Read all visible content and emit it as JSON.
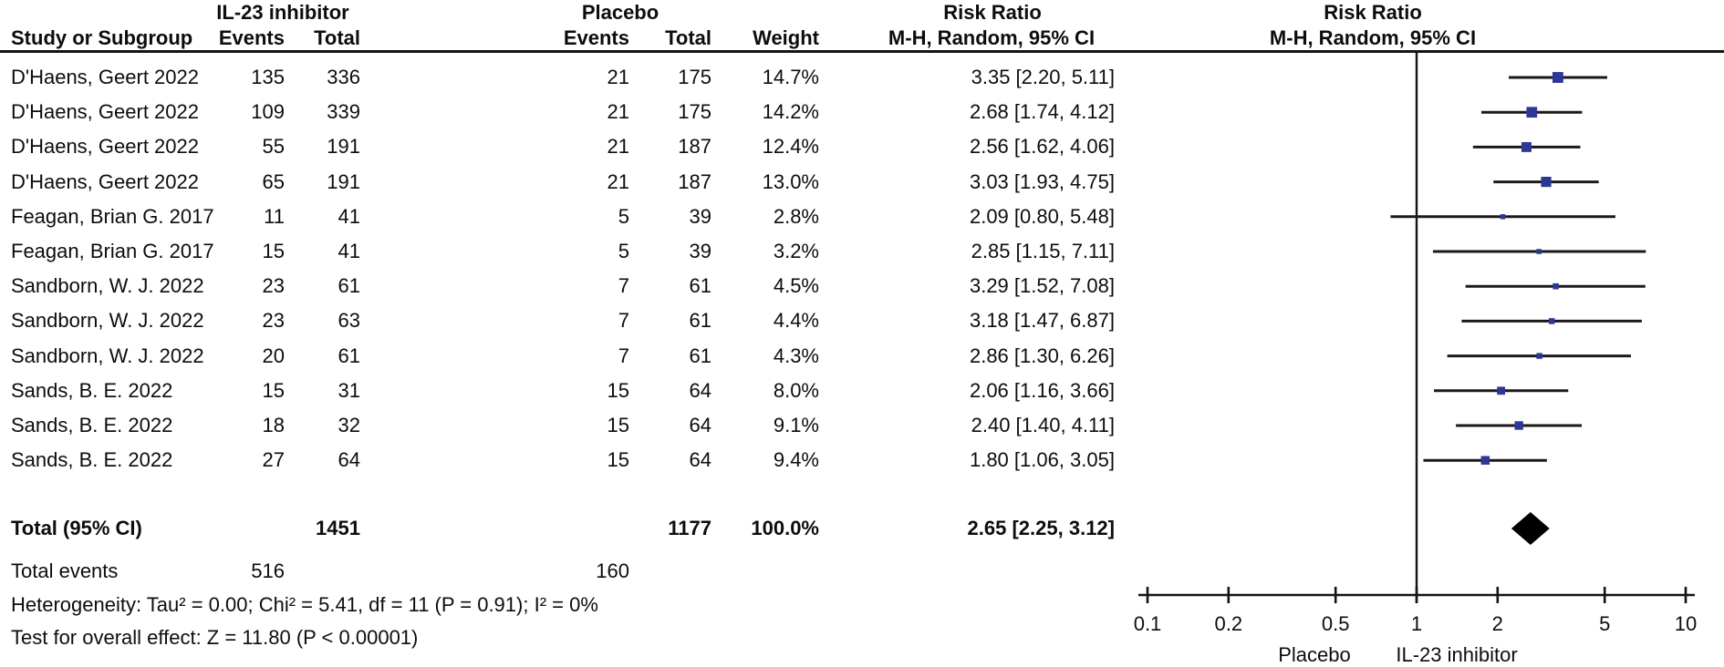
{
  "table": {
    "group_headers": {
      "treatment": "IL-23 inhibitor",
      "control": "Placebo",
      "risk_ratio": "Risk Ratio"
    },
    "column_headers": {
      "study": "Study or Subgroup",
      "treatment_events": "Events",
      "treatment_total": "Total",
      "control_events": "Events",
      "control_total": "Total",
      "weight": "Weight",
      "ci": "M-H, Random, 95% CI"
    },
    "total_events_label": "Total events"
  },
  "plot": {
    "title": "Risk Ratio",
    "subtitle": "M-H, Random, 95% CI",
    "colors": {
      "square": "#2d3796",
      "ci_line": "#1a1a1a",
      "diamond": "#000000",
      "axis": "#141414"
    }
  },
  "chart_data": {
    "type": "forest",
    "effect_measure": "Risk Ratio",
    "method": "M-H, Random, 95% CI",
    "x_scale": "log10",
    "xlim": [
      0.1,
      10
    ],
    "x_ticks": [
      0.1,
      0.2,
      0.5,
      1,
      2,
      5,
      10
    ],
    "favours_left": "Placebo",
    "favours_right": "IL-23 inhibitor",
    "studies": [
      {
        "name": "D'Haens, Geert 2022",
        "treatment_events": 135,
        "treatment_total": 336,
        "control_events": 21,
        "control_total": 175,
        "weight": "14.7%",
        "weight_value": 14.7,
        "rr": 3.35,
        "ci_low": 2.2,
        "ci_high": 5.11,
        "label": "3.35 [2.20, 5.11]"
      },
      {
        "name": "D'Haens, Geert 2022",
        "treatment_events": 109,
        "treatment_total": 339,
        "control_events": 21,
        "control_total": 175,
        "weight": "14.2%",
        "weight_value": 14.2,
        "rr": 2.68,
        "ci_low": 1.74,
        "ci_high": 4.12,
        "label": "2.68 [1.74, 4.12]"
      },
      {
        "name": "D'Haens, Geert 2022",
        "treatment_events": 55,
        "treatment_total": 191,
        "control_events": 21,
        "control_total": 187,
        "weight": "12.4%",
        "weight_value": 12.4,
        "rr": 2.56,
        "ci_low": 1.62,
        "ci_high": 4.06,
        "label": "2.56 [1.62, 4.06]"
      },
      {
        "name": "D'Haens, Geert 2022",
        "treatment_events": 65,
        "treatment_total": 191,
        "control_events": 21,
        "control_total": 187,
        "weight": "13.0%",
        "weight_value": 13.0,
        "rr": 3.03,
        "ci_low": 1.93,
        "ci_high": 4.75,
        "label": "3.03 [1.93, 4.75]"
      },
      {
        "name": "Feagan, Brian G. 2017",
        "treatment_events": 11,
        "treatment_total": 41,
        "control_events": 5,
        "control_total": 39,
        "weight": "2.8%",
        "weight_value": 2.8,
        "rr": 2.09,
        "ci_low": 0.8,
        "ci_high": 5.48,
        "label": "2.09 [0.80, 5.48]"
      },
      {
        "name": "Feagan, Brian G. 2017",
        "treatment_events": 15,
        "treatment_total": 41,
        "control_events": 5,
        "control_total": 39,
        "weight": "3.2%",
        "weight_value": 3.2,
        "rr": 2.85,
        "ci_low": 1.15,
        "ci_high": 7.11,
        "label": "2.85 [1.15, 7.11]"
      },
      {
        "name": "Sandborn, W. J. 2022",
        "treatment_events": 23,
        "treatment_total": 61,
        "control_events": 7,
        "control_total": 61,
        "weight": "4.5%",
        "weight_value": 4.5,
        "rr": 3.29,
        "ci_low": 1.52,
        "ci_high": 7.08,
        "label": "3.29 [1.52, 7.08]"
      },
      {
        "name": "Sandborn, W. J. 2022",
        "treatment_events": 23,
        "treatment_total": 63,
        "control_events": 7,
        "control_total": 61,
        "weight": "4.4%",
        "weight_value": 4.4,
        "rr": 3.18,
        "ci_low": 1.47,
        "ci_high": 6.87,
        "label": "3.18 [1.47, 6.87]"
      },
      {
        "name": "Sandborn, W. J. 2022",
        "treatment_events": 20,
        "treatment_total": 61,
        "control_events": 7,
        "control_total": 61,
        "weight": "4.3%",
        "weight_value": 4.3,
        "rr": 2.86,
        "ci_low": 1.3,
        "ci_high": 6.26,
        "label": "2.86 [1.30, 6.26]"
      },
      {
        "name": "Sands, B. E. 2022",
        "treatment_events": 15,
        "treatment_total": 31,
        "control_events": 15,
        "control_total": 64,
        "weight": "8.0%",
        "weight_value": 8.0,
        "rr": 2.06,
        "ci_low": 1.16,
        "ci_high": 3.66,
        "label": "2.06 [1.16, 3.66]"
      },
      {
        "name": "Sands, B. E. 2022",
        "treatment_events": 18,
        "treatment_total": 32,
        "control_events": 15,
        "control_total": 64,
        "weight": "9.1%",
        "weight_value": 9.1,
        "rr": 2.4,
        "ci_low": 1.4,
        "ci_high": 4.11,
        "label": "2.40 [1.40, 4.11]"
      },
      {
        "name": "Sands, B. E. 2022",
        "treatment_events": 27,
        "treatment_total": 64,
        "control_events": 15,
        "control_total": 64,
        "weight": "9.4%",
        "weight_value": 9.4,
        "rr": 1.8,
        "ci_low": 1.06,
        "ci_high": 3.05,
        "label": "1.80 [1.06, 3.05]"
      }
    ],
    "total": {
      "label": "Total (95% CI)",
      "treatment_total": 1451,
      "control_total": 1177,
      "weight": "100.0%",
      "weight_value": 100.0,
      "rr": 2.65,
      "ci_low": 2.25,
      "ci_high": 3.12,
      "rr_label": "2.65 [2.25, 3.12]"
    },
    "total_events": {
      "treatment": 516,
      "control": 160
    },
    "heterogeneity": "Heterogeneity: Tau² = 0.00; Chi² = 5.41, df = 11 (P = 0.91); I² = 0%",
    "overall_effect": "Test for overall effect: Z = 11.80 (P < 0.00001)"
  }
}
